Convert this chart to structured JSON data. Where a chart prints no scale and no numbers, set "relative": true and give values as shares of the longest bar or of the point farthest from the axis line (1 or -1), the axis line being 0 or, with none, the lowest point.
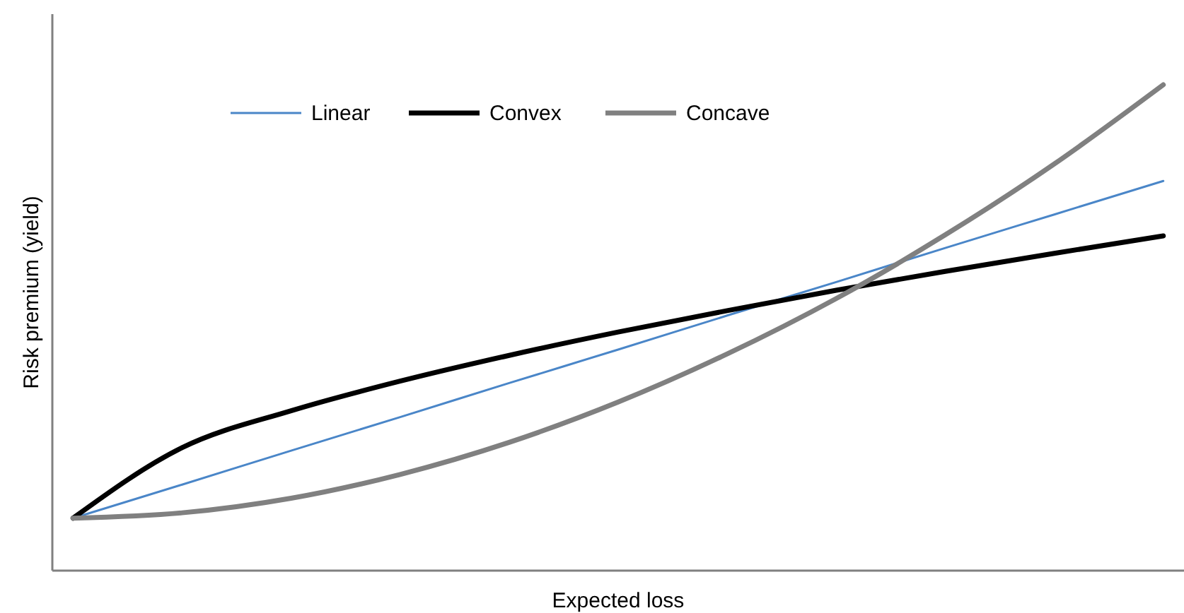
{
  "chart_data": {
    "type": "line",
    "relative": true,
    "xlabel": "Expected loss",
    "ylabel": "Risk premium  (yield)",
    "categories": [
      null,
      null,
      null,
      null,
      null,
      null,
      null,
      null,
      null,
      null,
      null
    ],
    "legend": "top",
    "marker": "none",
    "line_style": "solid",
    "series": [
      {
        "name": "Linear",
        "color": "#4a86c8",
        "values": [
          0.108,
          0.177,
          0.247,
          0.316,
          0.386,
          0.455,
          0.525,
          0.594,
          0.664,
          0.733,
          0.802
        ]
      },
      {
        "name": "Convex",
        "color": "#000000",
        "values": [
          0.108,
          0.253,
          0.329,
          0.39,
          0.443,
          0.491,
          0.535,
          0.577,
          0.616,
          0.653,
          0.689
        ]
      },
      {
        "name": "Concave",
        "color": "#808080",
        "values": [
          0.108,
          0.119,
          0.149,
          0.198,
          0.264,
          0.347,
          0.446,
          0.56,
          0.691,
          0.837,
          1
        ]
      }
    ]
  }
}
